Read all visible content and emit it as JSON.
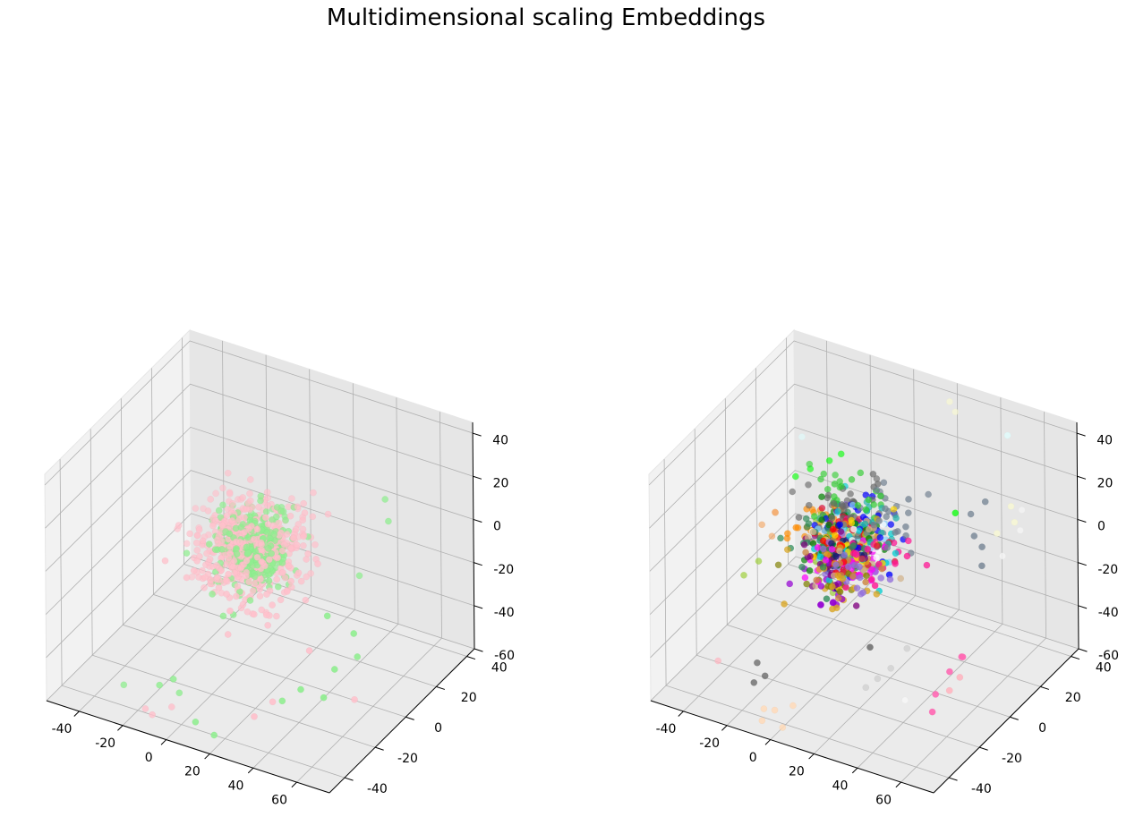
{
  "figure": {
    "title": "Multidimensional scaling Embeddings"
  },
  "chart_data": [
    {
      "type": "scatter",
      "subtype": "3d-scatter",
      "title": "",
      "xlabel": "",
      "ylabel": "",
      "zlabel": "",
      "xlim": [
        -55,
        75
      ],
      "ylim": [
        -50,
        45
      ],
      "zlim": [
        -60,
        45
      ],
      "x_ticks": [
        -40,
        -20,
        0,
        20,
        40,
        60
      ],
      "y_ticks": [
        -40,
        -20,
        0,
        20,
        40
      ],
      "z_ticks": [
        -60,
        -40,
        -20,
        0,
        20,
        40
      ],
      "grid": true,
      "pane_colors": [
        "#f2f2f2",
        "#e6e6e6",
        "#ebebeb"
      ],
      "clusters": [
        {
          "name": "",
          "color": "#ffc0cb",
          "count": 520,
          "center": [
            5,
            0,
            -5
          ],
          "spread": [
            20,
            17,
            18
          ]
        },
        {
          "name": "",
          "color": "#90ee90",
          "count": 300,
          "center": [
            6,
            0,
            -5
          ],
          "spread": [
            15,
            13,
            13
          ]
        }
      ],
      "outlier_points": [
        {
          "color": "#90ee90",
          "points": [
            [
              52,
              -18,
              -8
            ],
            [
              58,
              -22,
              -28
            ],
            [
              55,
              -25,
              -40
            ],
            [
              48,
              -30,
              -35
            ],
            [
              60,
              -10,
              -30
            ],
            [
              45,
              30,
              10
            ],
            [
              50,
              25,
              5
            ],
            [
              40,
              20,
              -20
            ],
            [
              62,
              -15,
              -15
            ],
            [
              38,
              -28,
              -45
            ],
            [
              -10,
              -40,
              -45
            ],
            [
              -5,
              -38,
              -42
            ],
            [
              10,
              -45,
              -52
            ],
            [
              -30,
              -35,
              -55
            ],
            [
              15,
              -40,
              -60
            ],
            [
              -8,
              -30,
              -55
            ]
          ]
        },
        {
          "color": "#ffc0cb",
          "points": [
            [
              -18,
              -38,
              -60
            ],
            [
              -12,
              -42,
              -58
            ],
            [
              -5,
              -46,
              -62
            ],
            [
              0,
              -40,
              -66
            ],
            [
              -20,
              -48,
              -70
            ],
            [
              -8,
              -35,
              -58
            ],
            [
              30,
              -35,
              -50
            ],
            [
              35,
              -30,
              -45
            ],
            [
              55,
              -5,
              -55
            ],
            [
              45,
              -20,
              -25
            ]
          ]
        }
      ]
    },
    {
      "type": "scatter",
      "subtype": "3d-scatter",
      "title": "",
      "xlabel": "",
      "ylabel": "",
      "zlabel": "",
      "xlim": [
        -55,
        75
      ],
      "ylim": [
        -50,
        45
      ],
      "zlim": [
        -60,
        45
      ],
      "x_ticks": [
        -40,
        -20,
        0,
        20,
        40,
        60
      ],
      "y_ticks": [
        -40,
        -20,
        0,
        20,
        40
      ],
      "z_ticks": [
        -60,
        -40,
        -20,
        0,
        20,
        40
      ],
      "grid": true,
      "pane_colors": [
        "#f2f2f2",
        "#e6e6e6",
        "#ebebeb"
      ],
      "clusters": [
        {
          "name": "",
          "color": "#ff0000",
          "count": 30,
          "center": [
            0,
            0,
            -5
          ],
          "spread": [
            14,
            12,
            12
          ]
        },
        {
          "name": "",
          "color": "#0000ff",
          "count": 30,
          "center": [
            2,
            4,
            0
          ],
          "spread": [
            14,
            12,
            12
          ]
        },
        {
          "name": "",
          "color": "#008000",
          "count": 35,
          "center": [
            -4,
            2,
            -2
          ],
          "spread": [
            15,
            12,
            13
          ]
        },
        {
          "name": "",
          "color": "#ff00ff",
          "count": 30,
          "center": [
            6,
            -2,
            -8
          ],
          "spread": [
            14,
            12,
            12
          ]
        },
        {
          "name": "",
          "color": "#800080",
          "count": 30,
          "center": [
            -2,
            -4,
            -10
          ],
          "spread": [
            14,
            12,
            12
          ]
        },
        {
          "name": "",
          "color": "#ffd700",
          "count": 30,
          "center": [
            4,
            2,
            -6
          ],
          "spread": [
            14,
            12,
            12
          ]
        },
        {
          "name": "",
          "color": "#00ced1",
          "count": 35,
          "center": [
            0,
            0,
            -4
          ],
          "spread": [
            15,
            12,
            12
          ]
        },
        {
          "name": "",
          "color": "#696969",
          "count": 40,
          "center": [
            -6,
            6,
            4
          ],
          "spread": [
            15,
            13,
            13
          ]
        },
        {
          "name": "",
          "color": "#ff8c00",
          "count": 30,
          "center": [
            -14,
            2,
            -6
          ],
          "spread": [
            12,
            10,
            10
          ]
        },
        {
          "name": "",
          "color": "#9370db",
          "count": 35,
          "center": [
            4,
            -4,
            -10
          ],
          "spread": [
            15,
            12,
            12
          ]
        },
        {
          "name": "",
          "color": "#2e8b57",
          "count": 35,
          "center": [
            -6,
            0,
            -2
          ],
          "spread": [
            15,
            12,
            12
          ]
        },
        {
          "name": "",
          "color": "#daa520",
          "count": 30,
          "center": [
            2,
            -6,
            -12
          ],
          "spread": [
            14,
            12,
            12
          ]
        },
        {
          "name": "",
          "color": "#ff1493",
          "count": 25,
          "center": [
            12,
            2,
            -6
          ],
          "spread": [
            12,
            10,
            10
          ]
        },
        {
          "name": "",
          "color": "#708090",
          "count": 35,
          "center": [
            8,
            8,
            2
          ],
          "spread": [
            16,
            12,
            12
          ]
        },
        {
          "name": "",
          "color": "#9acd32",
          "count": 25,
          "center": [
            -2,
            2,
            -6
          ],
          "spread": [
            14,
            12,
            12
          ]
        },
        {
          "name": "",
          "color": "#dc143c",
          "count": 20,
          "center": [
            6,
            0,
            -2
          ],
          "spread": [
            12,
            10,
            10
          ]
        },
        {
          "name": "",
          "color": "#191970",
          "count": 20,
          "center": [
            0,
            -2,
            -8
          ],
          "spread": [
            12,
            10,
            10
          ]
        },
        {
          "name": "",
          "color": "#87cefa",
          "count": 25,
          "center": [
            -2,
            4,
            -4
          ],
          "spread": [
            14,
            12,
            12
          ]
        },
        {
          "name": "",
          "color": "#d2b48c",
          "count": 30,
          "center": [
            0,
            0,
            -6
          ],
          "spread": [
            15,
            12,
            12
          ]
        },
        {
          "name": "",
          "color": "#32cd32",
          "count": 25,
          "center": [
            -8,
            8,
            8
          ],
          "spread": [
            14,
            10,
            10
          ]
        },
        {
          "name": "",
          "color": "#cd853f",
          "count": 25,
          "center": [
            2,
            -2,
            -8
          ],
          "spread": [
            14,
            12,
            12
          ]
        },
        {
          "name": "",
          "color": "#20b2aa",
          "count": 25,
          "center": [
            4,
            4,
            -2
          ],
          "spread": [
            14,
            12,
            12
          ]
        },
        {
          "name": "",
          "color": "#ffffff",
          "count": 20,
          "center": [
            4,
            2,
            -4
          ],
          "spread": [
            14,
            12,
            12
          ]
        },
        {
          "name": "",
          "color": "#808000",
          "count": 20,
          "center": [
            -4,
            -6,
            -14
          ],
          "spread": [
            12,
            10,
            10
          ]
        },
        {
          "name": "",
          "color": "#9400d3",
          "count": 20,
          "center": [
            -2,
            -8,
            -20
          ],
          "spread": [
            12,
            10,
            10
          ]
        }
      ],
      "outlier_points": [
        {
          "color": "#ff69b4",
          "points": [
            [
              60,
              -10,
              -30
            ],
            [
              58,
              -15,
              -34
            ],
            [
              62,
              -12,
              -28
            ],
            [
              55,
              -20,
              -42
            ],
            [
              57,
              -25,
              -46
            ]
          ]
        },
        {
          "color": "#ffb6c1",
          "points": [
            [
              62,
              -14,
              -36
            ],
            [
              60,
              -18,
              -40
            ],
            [
              -38,
              -30,
              -50
            ]
          ]
        },
        {
          "color": "#ffdab9",
          "points": [
            [
              -5,
              -40,
              -55
            ],
            [
              0,
              -42,
              -60
            ],
            [
              -8,
              -44,
              -58
            ],
            [
              -12,
              -46,
              -66
            ],
            [
              2,
              -38,
              -52
            ],
            [
              -2,
              -45,
              -62
            ],
            [
              -10,
              -40,
              -56
            ]
          ]
        },
        {
          "color": "#696969",
          "points": [
            [
              -20,
              -30,
              -45
            ],
            [
              -15,
              -32,
              -48
            ],
            [
              -18,
              -35,
              -50
            ],
            [
              25,
              -20,
              -30
            ]
          ]
        },
        {
          "color": "#d3d3d3",
          "points": [
            [
              30,
              -30,
              -40
            ],
            [
              34,
              -28,
              -36
            ],
            [
              38,
              -25,
              -32
            ],
            [
              42,
              -20,
              -25
            ]
          ]
        },
        {
          "color": "#708090",
          "points": [
            [
              40,
              25,
              5
            ],
            [
              45,
              20,
              0
            ],
            [
              50,
              18,
              -2
            ],
            [
              52,
              15,
              -8
            ],
            [
              46,
              26,
              12
            ]
          ]
        },
        {
          "color": "#00ff00",
          "points": [
            [
              -30,
              10,
              10
            ],
            [
              -26,
              14,
              12
            ],
            [
              -20,
              18,
              15
            ],
            [
              -16,
              20,
              18
            ],
            [
              35,
              22,
              6
            ]
          ]
        },
        {
          "color": "#fafad2",
          "points": [
            [
              20,
              40,
              40
            ],
            [
              24,
              38,
              38
            ],
            [
              55,
              30,
              10
            ],
            [
              58,
              28,
              5
            ],
            [
              52,
              25,
              0
            ]
          ]
        },
        {
          "color": "#f5f5f5",
          "points": [
            [
              60,
              30,
              10
            ],
            [
              62,
              26,
              4
            ],
            [
              58,
              20,
              -5
            ],
            [
              48,
              -30,
              -40
            ]
          ]
        },
        {
          "color": "#e0ffff",
          "points": [
            [
              48,
              38,
              35
            ],
            [
              -34,
              20,
              20
            ]
          ]
        },
        {
          "color": "#f4a460",
          "points": [
            [
              -36,
              5,
              -5
            ],
            [
              -40,
              2,
              -10
            ],
            [
              -34,
              0,
              -12
            ],
            [
              -38,
              8,
              -8
            ]
          ]
        },
        {
          "color": "#9acd32",
          "points": [
            [
              -40,
              -10,
              -25
            ],
            [
              -36,
              -6,
              -20
            ]
          ]
        }
      ]
    }
  ]
}
